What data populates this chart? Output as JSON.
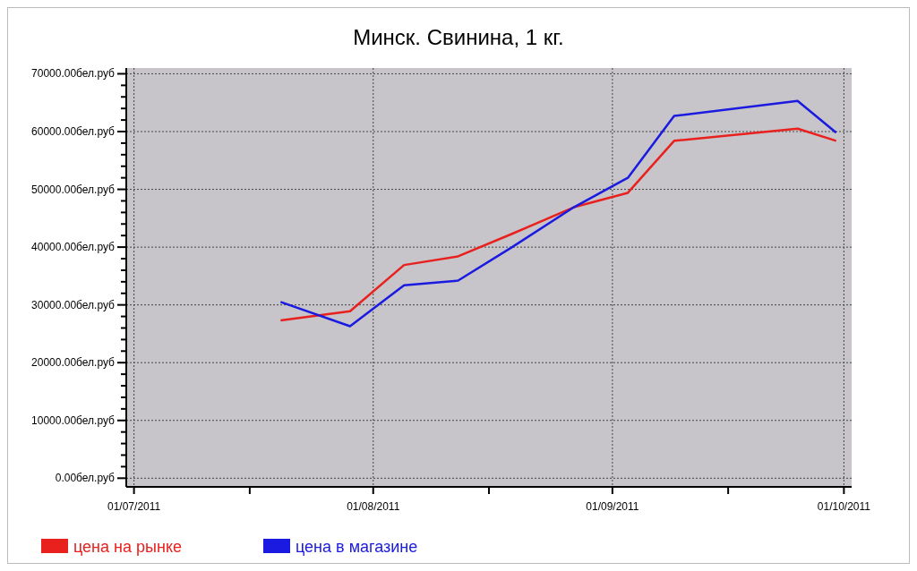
{
  "chart_data": {
    "type": "line",
    "title": "Минск. Свинина, 1 кг.",
    "x": [
      "2011-07-20",
      "2011-07-29",
      "2011-08-05",
      "2011-08-12",
      "2011-08-19",
      "2011-08-27",
      "2011-09-03",
      "2011-09-09",
      "2011-09-25",
      "2011-09-30"
    ],
    "series": [
      {
        "name": "цена на рынке",
        "color": "#e8211f",
        "values": [
          27300,
          28900,
          36900,
          38400,
          42300,
          46900,
          49400,
          58400,
          60500,
          58400
        ]
      },
      {
        "name": "цена в магазине",
        "color": "#1a1ae0",
        "values": [
          30500,
          26300,
          33400,
          34200,
          40000,
          46900,
          52000,
          62700,
          65300,
          59800
        ]
      }
    ],
    "xlim": [
      "2011-06-30",
      "2011-10-02"
    ],
    "xticks": [
      {
        "value": "2011-07-01",
        "label": "01/07/2011"
      },
      {
        "value": "2011-07-16",
        "label": null
      },
      {
        "value": "2011-08-01",
        "label": "01/08/2011"
      },
      {
        "value": "2011-08-16",
        "label": null
      },
      {
        "value": "2011-09-01",
        "label": "01/09/2011"
      },
      {
        "value": "2011-09-16",
        "label": null
      },
      {
        "value": "2011-10-01",
        "label": "01/10/2011"
      }
    ],
    "ylim": [
      -1500,
      71000
    ],
    "yticks": [
      {
        "value": 0,
        "label": "0.00бел.руб"
      },
      {
        "value": 2000,
        "label": null
      },
      {
        "value": 4000,
        "label": null
      },
      {
        "value": 6000,
        "label": null
      },
      {
        "value": 8000,
        "label": null
      },
      {
        "value": 10000,
        "label": "10000.00бел.руб"
      },
      {
        "value": 12000,
        "label": null
      },
      {
        "value": 14000,
        "label": null
      },
      {
        "value": 16000,
        "label": null
      },
      {
        "value": 18000,
        "label": null
      },
      {
        "value": 20000,
        "label": "20000.00бел.руб"
      },
      {
        "value": 22000,
        "label": null
      },
      {
        "value": 24000,
        "label": null
      },
      {
        "value": 26000,
        "label": null
      },
      {
        "value": 28000,
        "label": null
      },
      {
        "value": 30000,
        "label": "30000.00бел.руб"
      },
      {
        "value": 32000,
        "label": null
      },
      {
        "value": 34000,
        "label": null
      },
      {
        "value": 36000,
        "label": null
      },
      {
        "value": 38000,
        "label": null
      },
      {
        "value": 40000,
        "label": "40000.00бел.руб"
      },
      {
        "value": 42000,
        "label": null
      },
      {
        "value": 44000,
        "label": null
      },
      {
        "value": 46000,
        "label": null
      },
      {
        "value": 48000,
        "label": null
      },
      {
        "value": 50000,
        "label": "50000.00бел.руб"
      },
      {
        "value": 52000,
        "label": null
      },
      {
        "value": 54000,
        "label": null
      },
      {
        "value": 56000,
        "label": null
      },
      {
        "value": 58000,
        "label": null
      },
      {
        "value": 60000,
        "label": "60000.00бел.руб"
      },
      {
        "value": 62000,
        "label": null
      },
      {
        "value": 64000,
        "label": null
      },
      {
        "value": 66000,
        "label": null
      },
      {
        "value": 68000,
        "label": null
      },
      {
        "value": 70000,
        "label": "70000.00бел.руб"
      }
    ],
    "grid": true,
    "legend": "bottom left",
    "marker": "none",
    "line_style": "solid"
  }
}
